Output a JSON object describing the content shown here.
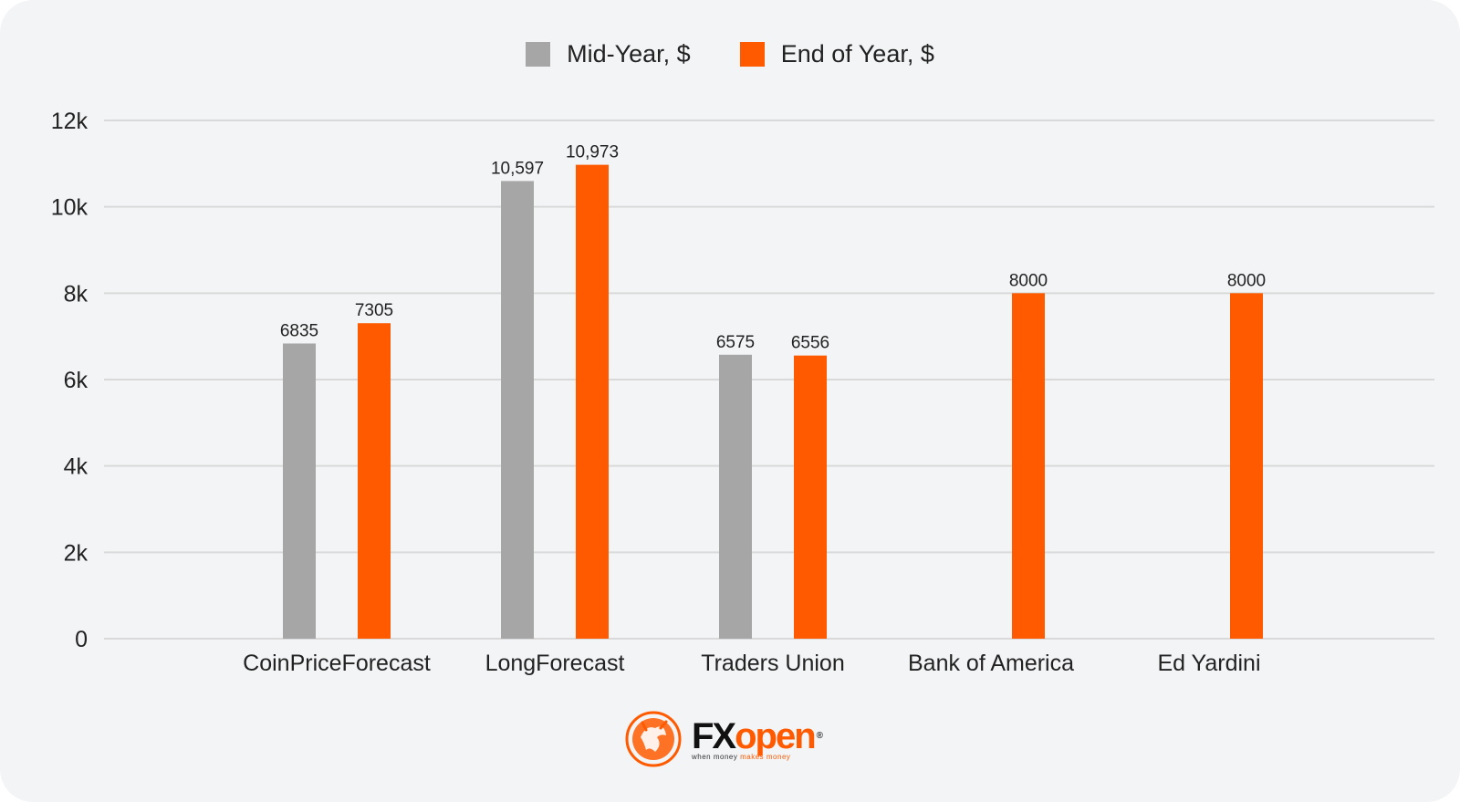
{
  "colors": {
    "mid": "#a6a6a6",
    "end": "#ff5a00",
    "grid": "#d9d9d9"
  },
  "legend": {
    "mid": "Mid-Year, $",
    "end": "End of Year, $"
  },
  "chart_data": {
    "type": "bar",
    "categories": [
      "CoinPriceForecast",
      "LongForecast",
      "Traders Union",
      "Bank of America",
      "Ed Yardini"
    ],
    "series": [
      {
        "name": "Mid-Year, $",
        "values": [
          6835,
          10597,
          6575,
          null,
          null
        ],
        "labels": [
          "6835",
          "10,597",
          "6575",
          null,
          null
        ]
      },
      {
        "name": "End of Year, $",
        "values": [
          7305,
          10973,
          6556,
          8000,
          8000
        ],
        "labels": [
          "7305",
          "10,973",
          "6556",
          "8000",
          "8000"
        ]
      }
    ],
    "yticks": [
      {
        "value": 0,
        "label": "0"
      },
      {
        "value": 2000,
        "label": "2k"
      },
      {
        "value": 4000,
        "label": "4k"
      },
      {
        "value": 6000,
        "label": "6k"
      },
      {
        "value": 8000,
        "label": "8k"
      },
      {
        "value": 10000,
        "label": "10k"
      },
      {
        "value": 12000,
        "label": "12k"
      }
    ],
    "ylim": [
      0,
      12000
    ],
    "grid": true,
    "legend_position": "top-center"
  },
  "logo": {
    "text_fx": "FX",
    "text_open": "open",
    "reg": "®",
    "tagline_a": "when money",
    "tagline_b": "makes money"
  }
}
